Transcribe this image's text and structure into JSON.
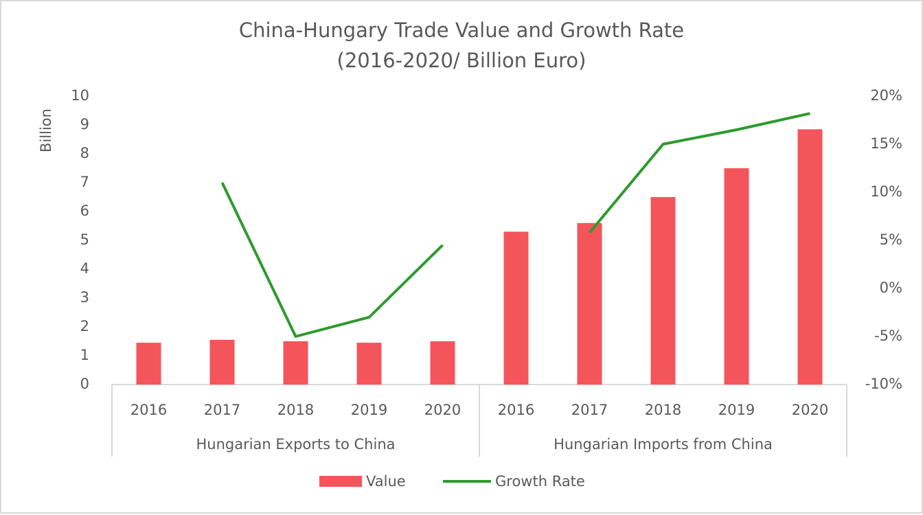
{
  "chart_data": {
    "type": "bar",
    "title": "China-Hungary Trade Value and Growth Rate",
    "subtitle": "(2016-2020/ Billion Euro)",
    "y_label": "Billion",
    "groups": [
      {
        "label": "Hungarian Exports to China",
        "categories": [
          "2016",
          "2017",
          "2018",
          "2019",
          "2020"
        ]
      },
      {
        "label": "Hungarian Imports from China",
        "categories": [
          "2016",
          "2017",
          "2018",
          "2019",
          "2020"
        ]
      }
    ],
    "series": [
      {
        "name": "Value",
        "type": "bar",
        "color": "#f4555a",
        "values": [
          1.45,
          1.55,
          1.5,
          1.45,
          1.5,
          5.3,
          5.6,
          6.5,
          7.5,
          8.85
        ]
      },
      {
        "name": "Growth Rate",
        "type": "line",
        "axis": "y2",
        "color": "#2e9a2e",
        "values": [
          null,
          11,
          -5,
          -3,
          4.5,
          null,
          5.8,
          15,
          16.5,
          18.2
        ]
      }
    ],
    "ylim": [
      0,
      10
    ],
    "yticks": [
      0,
      1,
      2,
      3,
      4,
      5,
      6,
      7,
      8,
      9,
      10
    ],
    "y2lim": [
      -10,
      20
    ],
    "y2ticks": [
      {
        "value": -10,
        "label": "-10%"
      },
      {
        "value": -5,
        "label": "-5%"
      },
      {
        "value": 0,
        "label": "0%"
      },
      {
        "value": 5,
        "label": "5%"
      },
      {
        "value": 10,
        "label": "10%"
      },
      {
        "value": 15,
        "label": "15%"
      },
      {
        "value": 20,
        "label": "20%"
      }
    ],
    "legend": "bottom"
  }
}
